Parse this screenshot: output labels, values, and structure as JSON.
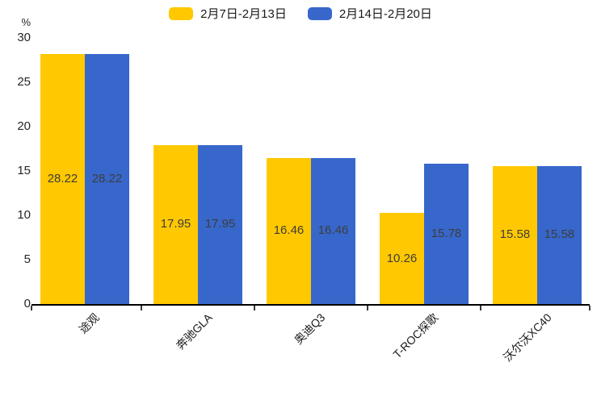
{
  "chart_data": {
    "type": "bar",
    "title": "",
    "ylabel": "%",
    "xlabel": "",
    "categories": [
      "途观",
      "奔驰GLA",
      "奥迪Q3",
      "T-ROC探歌",
      "沃尔沃XC40"
    ],
    "series": [
      {
        "name": "2月7日-2月13日",
        "color": "#FFC800",
        "values": [
          28.22,
          17.95,
          16.46,
          10.26,
          15.58
        ]
      },
      {
        "name": "2月14日-2月20日",
        "color": "#3767CA",
        "values": [
          28.22,
          17.95,
          16.46,
          15.78,
          15.58
        ]
      }
    ],
    "yticks": [
      0,
      5,
      10,
      15,
      20,
      25,
      30
    ],
    "ylim": [
      0,
      30
    ],
    "legend_position": "top-center",
    "grid": false,
    "bar_value_labels": true,
    "value_label_decimals": 2,
    "axis_color": "#000000",
    "text_color": "#262626"
  }
}
